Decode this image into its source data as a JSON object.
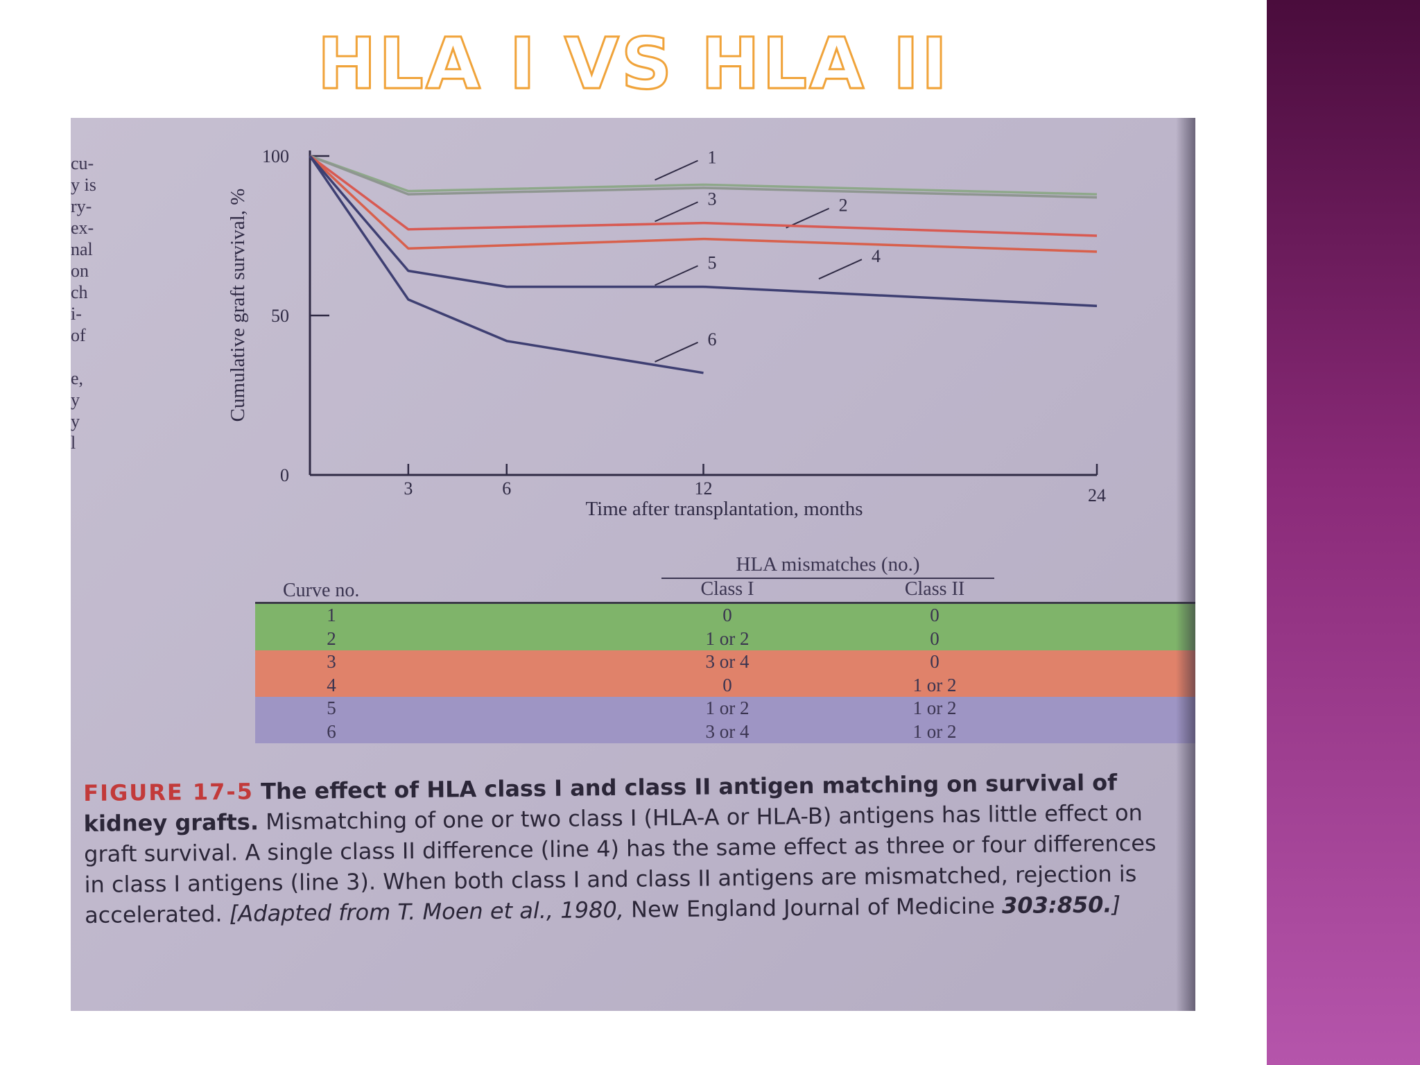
{
  "slide": {
    "title": "HLA I VS HLA II",
    "accent_bar_color": "#8a2a78",
    "title_color": "#f0a33a"
  },
  "margin_text": [
    "cu-",
    "y is",
    "ry-",
    "ex-",
    "nal",
    "on",
    "ch",
    "i-",
    "of",
    "",
    "e,",
    "y",
    "y",
    "l"
  ],
  "chart_data": {
    "type": "line",
    "title": "",
    "xlabel": "Time after transplantation, months",
    "ylabel": "Cumulative graft survival, %",
    "xlim": [
      0,
      24
    ],
    "ylim": [
      0,
      100
    ],
    "x_ticks": [
      3,
      6,
      12,
      24
    ],
    "y_ticks": [
      0,
      50,
      100
    ],
    "grid": false,
    "legend": "none",
    "series": [
      {
        "name": "1",
        "color": "#8ea88a",
        "points": [
          [
            0,
            100
          ],
          [
            3,
            89
          ],
          [
            12,
            91
          ],
          [
            24,
            88
          ]
        ],
        "label_at": [
          12,
          99
        ]
      },
      {
        "name": "2",
        "color": "#8e9690",
        "points": [
          [
            0,
            100
          ],
          [
            3,
            88
          ],
          [
            12,
            90
          ],
          [
            24,
            87
          ]
        ],
        "label_at": [
          16,
          84
        ]
      },
      {
        "name": "3",
        "color": "#d85a52",
        "points": [
          [
            0,
            100
          ],
          [
            3,
            77
          ],
          [
            12,
            79
          ],
          [
            24,
            75
          ]
        ],
        "label_at": [
          12,
          86
        ]
      },
      {
        "name": "4",
        "color": "#d8604c",
        "points": [
          [
            0,
            100
          ],
          [
            3,
            71
          ],
          [
            12,
            74
          ],
          [
            24,
            70
          ]
        ],
        "label_at": [
          17,
          68
        ]
      },
      {
        "name": "5",
        "color": "#3e3f72",
        "points": [
          [
            0,
            100
          ],
          [
            3,
            64
          ],
          [
            6,
            59
          ],
          [
            12,
            59
          ],
          [
            24,
            53
          ]
        ],
        "label_at": [
          12,
          66
        ]
      },
      {
        "name": "6",
        "color": "#3e3f72",
        "points": [
          [
            0,
            100
          ],
          [
            3,
            55
          ],
          [
            6,
            42
          ],
          [
            12,
            32
          ]
        ],
        "label_at": [
          12,
          42
        ]
      }
    ]
  },
  "table": {
    "group_header": "HLA mismatches (no.)",
    "columns": [
      "Curve no.",
      "Class I",
      "Class II"
    ],
    "groups": [
      {
        "color": "#7fb46a",
        "rows": [
          [
            "1",
            "0",
            "0"
          ],
          [
            "2",
            "1 or 2",
            "0"
          ]
        ]
      },
      {
        "color": "#e0826a",
        "rows": [
          [
            "3",
            "3 or 4",
            "0"
          ],
          [
            "4",
            "0",
            "1 or 2"
          ]
        ]
      },
      {
        "color": "#9e95c4",
        "rows": [
          [
            "5",
            "1 or 2",
            "1 or 2"
          ],
          [
            "6",
            "3 or 4",
            "1 or 2"
          ]
        ]
      }
    ]
  },
  "caption": {
    "figure_no": "FIGURE 17-5",
    "lead": "The effect of HLA class I and class II antigen matching on survival of kidney grafts.",
    "body": "Mismatching of one or two class I (HLA-A or HLA-B) antigens has little effect on graft survival. A single class II difference (line 4) has the same effect as three or four differences in class I antigens (line 3). When both class I and class II antigens are mismatched, rejection is accelerated.",
    "source_prefix": "[Adapted from T. Moen et al., 1980,",
    "journal": "New England Journal of Medicine",
    "volume": "303:850.",
    "source_suffix": "]"
  }
}
